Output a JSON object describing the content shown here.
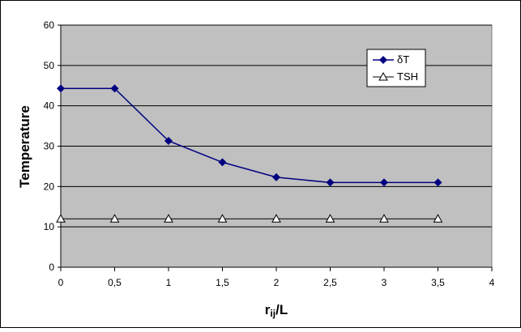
{
  "chart_data": {
    "type": "line",
    "title": "",
    "xlabel": {
      "main": "r",
      "sub": "ij",
      "rest": "/L"
    },
    "ylabel": "Temperature",
    "xlim": [
      0,
      4
    ],
    "ylim": [
      0,
      60
    ],
    "x_ticks": [
      "0",
      "0,5",
      "1",
      "1,5",
      "2",
      "2,5",
      "3",
      "3,5",
      "4"
    ],
    "y_ticks": [
      "0",
      "10",
      "20",
      "30",
      "40",
      "50",
      "60"
    ],
    "grid": "horizontal",
    "legend_position": "top-right",
    "series": [
      {
        "name": "δT",
        "marker": "diamond-filled",
        "color": "#000080",
        "x": [
          0,
          0.5,
          1,
          1.5,
          2,
          2.5,
          3,
          3.5
        ],
        "values": [
          44.3,
          44.3,
          31.3,
          26.0,
          22.3,
          21.0,
          21.0,
          21.0
        ]
      },
      {
        "name": "TSH",
        "marker": "triangle-open",
        "color": "#000000",
        "x": [
          0,
          0.5,
          1,
          1.5,
          2,
          2.5,
          3,
          3.5
        ],
        "values": [
          12,
          12,
          12,
          12,
          12,
          12,
          12,
          12
        ]
      }
    ],
    "colors": {
      "plot_area": "#c0c0c0",
      "grid": "#000000"
    }
  }
}
